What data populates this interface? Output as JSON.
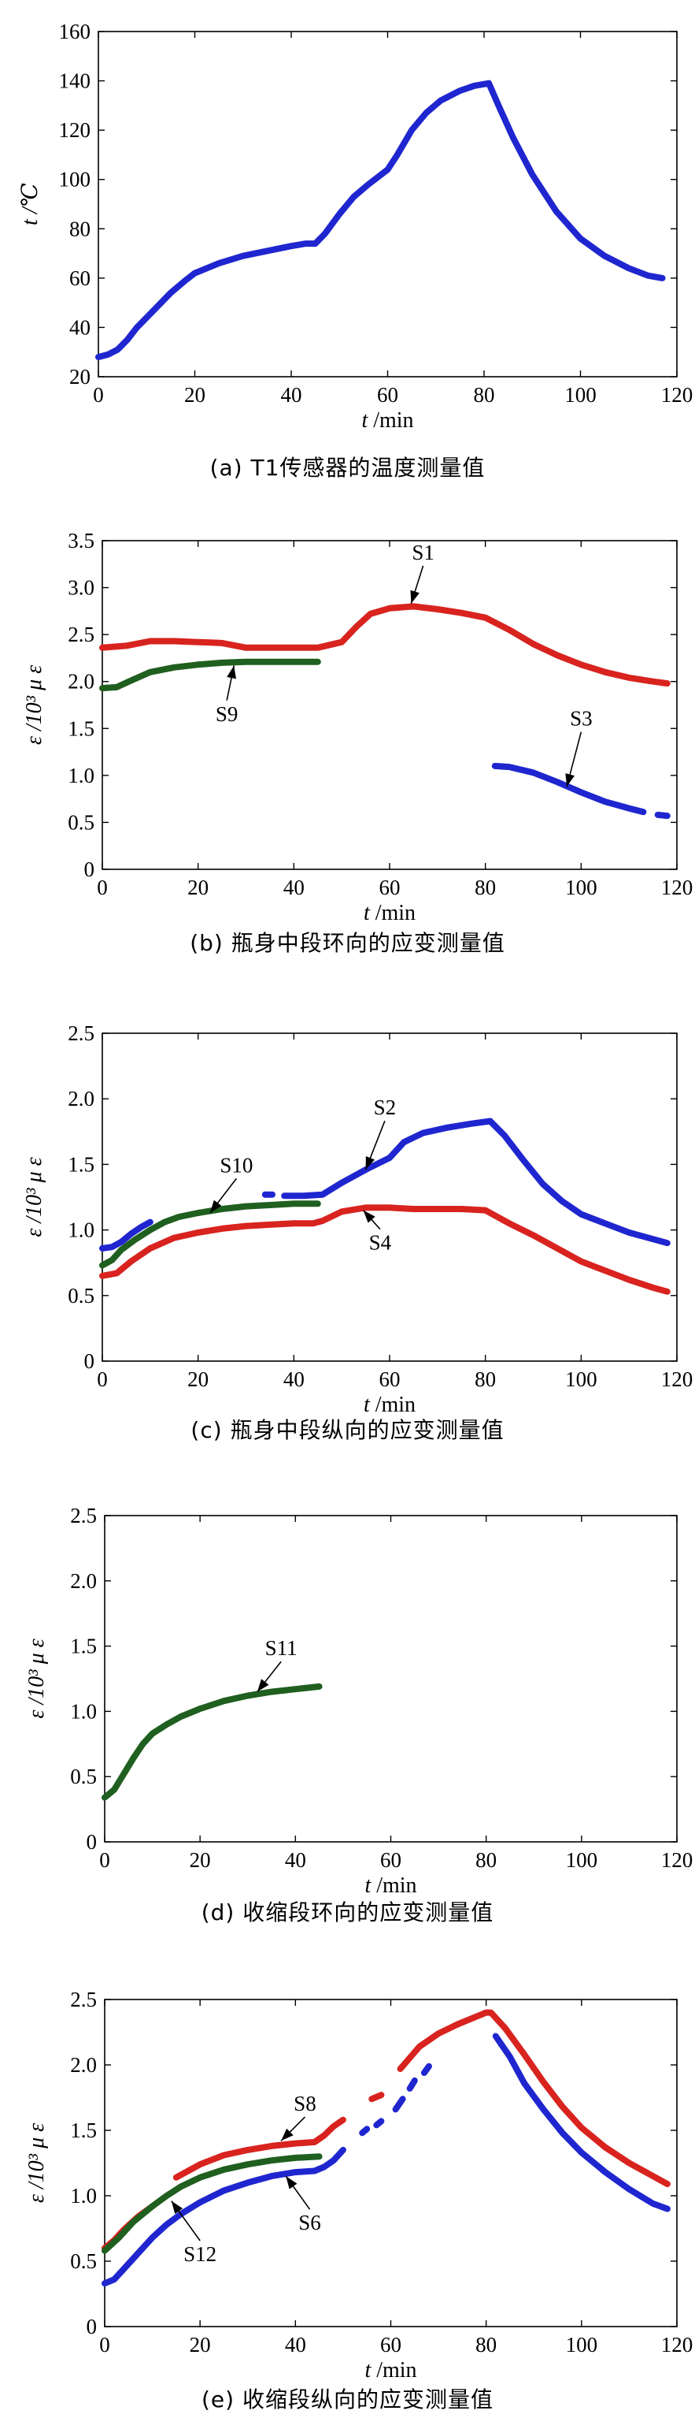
{
  "colors": {
    "blue": "#1f26cf",
    "red": "#d8231f",
    "green": "#1f5f1f"
  },
  "chart_data": [
    {
      "type": "line",
      "caption": "(a)  T1传感器的温度测量值",
      "xlabel_var": "t",
      "xlabel_unit": "/min",
      "ylabel": "t /℃",
      "xlim": [
        0,
        120
      ],
      "ylim": [
        20,
        160
      ],
      "xticks": [
        0,
        20,
        40,
        60,
        80,
        100,
        120
      ],
      "yticks": [
        20,
        40,
        60,
        80,
        100,
        120,
        140,
        160
      ],
      "series": [
        {
          "name": "",
          "color": "blue",
          "x": [
            0,
            2,
            4,
            6,
            8,
            10,
            12,
            15,
            18,
            20,
            25,
            30,
            35,
            40,
            43,
            45,
            47,
            50,
            53,
            56,
            60,
            62,
            65,
            68,
            71,
            75,
            78,
            81,
            83,
            86,
            90,
            95,
            100,
            105,
            110,
            114,
            117
          ],
          "y": [
            28,
            29,
            31,
            35,
            40,
            44,
            48,
            54,
            59,
            62,
            66,
            69,
            71,
            73,
            74,
            74,
            78,
            86,
            93,
            98,
            104,
            110,
            120,
            127,
            132,
            136,
            138,
            139,
            130,
            117,
            102,
            87,
            76,
            69,
            64,
            61,
            60
          ]
        }
      ],
      "annotations": []
    },
    {
      "type": "line",
      "caption": "(b)  瓶身中段环向的应变测量值",
      "xlabel_var": "t",
      "xlabel_unit": "/min",
      "ylabel": "ε /10³ μ ε",
      "xlim": [
        0,
        120
      ],
      "ylim": [
        0,
        3.5
      ],
      "xticks": [
        0,
        20,
        40,
        60,
        80,
        100,
        120
      ],
      "yticks": [
        "0",
        "0.5",
        "1.0",
        "1.5",
        "2.0",
        "2.5",
        "3.0",
        "3.5"
      ],
      "series": [
        {
          "name": "S1",
          "color": "red",
          "x": [
            0,
            5,
            10,
            15,
            20,
            25,
            30,
            35,
            40,
            45,
            50,
            53,
            56,
            60,
            65,
            70,
            75,
            80,
            85,
            90,
            95,
            100,
            105,
            110,
            115,
            118
          ],
          "y": [
            2.36,
            2.38,
            2.43,
            2.43,
            2.42,
            2.41,
            2.36,
            2.36,
            2.36,
            2.36,
            2.42,
            2.58,
            2.72,
            2.78,
            2.8,
            2.77,
            2.73,
            2.68,
            2.55,
            2.4,
            2.28,
            2.18,
            2.1,
            2.04,
            2.0,
            1.98
          ]
        },
        {
          "name": "S9",
          "color": "green",
          "x": [
            0,
            3,
            6,
            10,
            15,
            20,
            25,
            30,
            35,
            40,
            45
          ],
          "y": [
            1.93,
            1.94,
            2.01,
            2.1,
            2.15,
            2.18,
            2.2,
            2.21,
            2.21,
            2.21,
            2.21
          ]
        },
        {
          "name": "S3",
          "color": "blue",
          "x": [
            82,
            85,
            90,
            95,
            100,
            105,
            110,
            113
          ],
          "y": [
            1.1,
            1.09,
            1.03,
            0.93,
            0.82,
            0.72,
            0.65,
            0.61
          ]
        },
        {
          "name": "",
          "color": "blue",
          "x": [
            116,
            118
          ],
          "y": [
            0.58,
            0.57
          ]
        }
      ],
      "annotations": [
        {
          "text": "S1",
          "x": 67,
          "y": 3.3,
          "ax": 64.5,
          "ay": 2.83
        },
        {
          "text": "S9",
          "x": 26,
          "y": 1.58,
          "ax": 27.5,
          "ay": 2.17
        },
        {
          "text": "S3",
          "x": 100,
          "y": 1.53,
          "ax": 97,
          "ay": 0.88
        }
      ]
    },
    {
      "type": "line",
      "caption": "(c)  瓶身中段纵向的应变测量值",
      "xlabel_var": "t",
      "xlabel_unit": "/min",
      "ylabel": "ε /10³ μ ε",
      "xlim": [
        0,
        120
      ],
      "ylim": [
        0,
        2.5
      ],
      "xticks": [
        0,
        20,
        40,
        60,
        80,
        100,
        120
      ],
      "yticks": [
        "0",
        "0.5",
        "1.0",
        "1.5",
        "2.0",
        "2.5"
      ],
      "series": [
        {
          "name": "S10",
          "color": "green",
          "x": [
            0,
            2,
            4,
            7,
            10,
            13,
            16,
            20,
            25,
            30,
            35,
            40,
            45
          ],
          "y": [
            0.73,
            0.77,
            0.85,
            0.93,
            1.0,
            1.06,
            1.1,
            1.13,
            1.16,
            1.18,
            1.19,
            1.2,
            1.2
          ]
        },
        {
          "name": "S2",
          "color": "blue",
          "x": [
            0,
            2,
            4,
            6,
            8,
            10
          ],
          "y": [
            0.86,
            0.87,
            0.91,
            0.97,
            1.02,
            1.06
          ]
        },
        {
          "name": "",
          "color": "blue",
          "x": [
            38,
            42,
            46,
            50,
            55,
            60,
            63,
            67,
            72,
            77,
            81,
            84,
            88,
            92,
            96,
            100,
            105,
            110,
            115,
            118
          ],
          "y": [
            1.26,
            1.26,
            1.27,
            1.36,
            1.46,
            1.55,
            1.67,
            1.74,
            1.78,
            1.81,
            1.83,
            1.72,
            1.53,
            1.35,
            1.22,
            1.12,
            1.05,
            0.98,
            0.93,
            0.9
          ]
        },
        {
          "name": "",
          "color": "blue",
          "x": [
            34,
            35.5
          ],
          "y": [
            1.27,
            1.27
          ]
        },
        {
          "name": "S4",
          "color": "red",
          "x": [
            0,
            3,
            6,
            10,
            15,
            20,
            25,
            30,
            35,
            40,
            44,
            46,
            50,
            55,
            60,
            65,
            70,
            75,
            80,
            85,
            90,
            95,
            100,
            105,
            110,
            115,
            118
          ],
          "y": [
            0.65,
            0.67,
            0.76,
            0.86,
            0.94,
            0.98,
            1.01,
            1.03,
            1.04,
            1.05,
            1.05,
            1.07,
            1.14,
            1.17,
            1.17,
            1.16,
            1.16,
            1.16,
            1.15,
            1.05,
            0.96,
            0.86,
            0.76,
            0.69,
            0.62,
            0.56,
            0.53
          ]
        }
      ],
      "annotations": [
        {
          "text": "S10",
          "x": 28,
          "y": 1.44,
          "ax": 22.5,
          "ay": 1.13
        },
        {
          "text": "S2",
          "x": 59,
          "y": 1.88,
          "ax": 55,
          "ay": 1.46
        },
        {
          "text": "S4",
          "x": 58,
          "y": 0.85,
          "ax": 54.5,
          "ay": 1.15
        }
      ]
    },
    {
      "type": "line",
      "caption": "(d)  收缩段环向的应变测量值",
      "xlabel_var": "t",
      "xlabel_unit": "/min",
      "ylabel": "ε /10³ μ ε",
      "xlim": [
        0,
        120
      ],
      "ylim": [
        0,
        2.5
      ],
      "xticks": [
        0,
        20,
        40,
        60,
        80,
        100,
        120
      ],
      "yticks": [
        "0",
        "0.5",
        "1.0",
        "1.5",
        "2.0",
        "2.5"
      ],
      "series": [
        {
          "name": "S11",
          "color": "green",
          "x": [
            0,
            2,
            4,
            6,
            8,
            10,
            13,
            16,
            20,
            25,
            30,
            35,
            40,
            45
          ],
          "y": [
            0.34,
            0.4,
            0.52,
            0.64,
            0.75,
            0.83,
            0.9,
            0.96,
            1.02,
            1.08,
            1.12,
            1.15,
            1.17,
            1.19
          ]
        }
      ],
      "annotations": [
        {
          "text": "S11",
          "x": 37,
          "y": 1.43,
          "ax": 32,
          "ay": 1.15
        }
      ]
    },
    {
      "type": "line",
      "caption": "(e)  收缩段纵向的应变测量值",
      "xlabel_var": "t",
      "xlabel_unit": "/min",
      "ylabel": "ε /10³ μ ε",
      "xlim": [
        0,
        120
      ],
      "ylim": [
        0,
        2.5
      ],
      "xticks": [
        0,
        20,
        40,
        60,
        80,
        100,
        120
      ],
      "yticks": [
        "0",
        "0.5",
        "1.0",
        "1.5",
        "2.0",
        "2.5"
      ],
      "series": [
        {
          "name": "S8",
          "color": "red",
          "x": [
            0,
            2,
            4,
            7,
            10
          ],
          "y": [
            0.6,
            0.66,
            0.74,
            0.84,
            0.92
          ]
        },
        {
          "name": "",
          "color": "red",
          "x": [
            15,
            20,
            25,
            30,
            35,
            40,
            44,
            46,
            48,
            50
          ],
          "y": [
            1.14,
            1.24,
            1.31,
            1.35,
            1.38,
            1.4,
            1.41,
            1.46,
            1.53,
            1.58
          ]
        },
        {
          "name": "",
          "color": "red",
          "x": [
            56,
            58
          ],
          "y": [
            1.74,
            1.77
          ]
        },
        {
          "name": "",
          "color": "red",
          "x": [
            62,
            66,
            70,
            74,
            78,
            80,
            81,
            84,
            88,
            92,
            96,
            100,
            105,
            110,
            115,
            118
          ],
          "y": [
            1.97,
            2.14,
            2.24,
            2.31,
            2.37,
            2.4,
            2.4,
            2.28,
            2.08,
            1.87,
            1.68,
            1.52,
            1.37,
            1.25,
            1.15,
            1.09
          ]
        },
        {
          "name": "S12",
          "color": "green",
          "x": [
            0,
            3,
            6,
            10,
            13,
            16,
            20,
            25,
            30,
            35,
            40,
            45
          ],
          "y": [
            0.58,
            0.68,
            0.8,
            0.92,
            1.0,
            1.07,
            1.14,
            1.2,
            1.24,
            1.27,
            1.29,
            1.3
          ]
        },
        {
          "name": "S6",
          "color": "blue",
          "x": [
            0,
            2,
            4,
            7,
            10,
            13,
            16,
            20,
            25,
            30,
            35,
            40,
            44,
            46,
            48,
            50
          ],
          "y": [
            0.33,
            0.36,
            0.44,
            0.56,
            0.68,
            0.78,
            0.86,
            0.95,
            1.04,
            1.1,
            1.15,
            1.18,
            1.19,
            1.22,
            1.27,
            1.35
          ]
        },
        {
          "name": "",
          "color": "blue",
          "x": [
            54,
            55
          ],
          "y": [
            1.48,
            1.51
          ]
        },
        {
          "name": "",
          "color": "blue",
          "x": [
            57,
            58
          ],
          "y": [
            1.54,
            1.57
          ]
        },
        {
          "name": "",
          "color": "blue",
          "x": [
            61,
            62.5
          ],
          "y": [
            1.66,
            1.74
          ]
        },
        {
          "name": "",
          "color": "blue",
          "x": [
            64,
            65
          ],
          "y": [
            1.82,
            1.88
          ]
        },
        {
          "name": "",
          "color": "blue",
          "x": [
            67,
            68
          ],
          "y": [
            1.94,
            1.99
          ]
        },
        {
          "name": "",
          "color": "blue",
          "x": [
            82,
            85,
            88,
            92,
            96,
            100,
            105,
            110,
            115,
            118
          ],
          "y": [
            2.22,
            2.06,
            1.86,
            1.66,
            1.48,
            1.33,
            1.18,
            1.05,
            0.94,
            0.9
          ]
        }
      ],
      "annotations": [
        {
          "text": "S8",
          "x": 42,
          "y": 1.65,
          "ax": 37,
          "ay": 1.42
        },
        {
          "text": "S12",
          "x": 20,
          "y": 0.5,
          "ax": 14,
          "ay": 0.96
        },
        {
          "text": "S6",
          "x": 43,
          "y": 0.74,
          "ax": 38,
          "ay": 1.15
        }
      ]
    }
  ]
}
